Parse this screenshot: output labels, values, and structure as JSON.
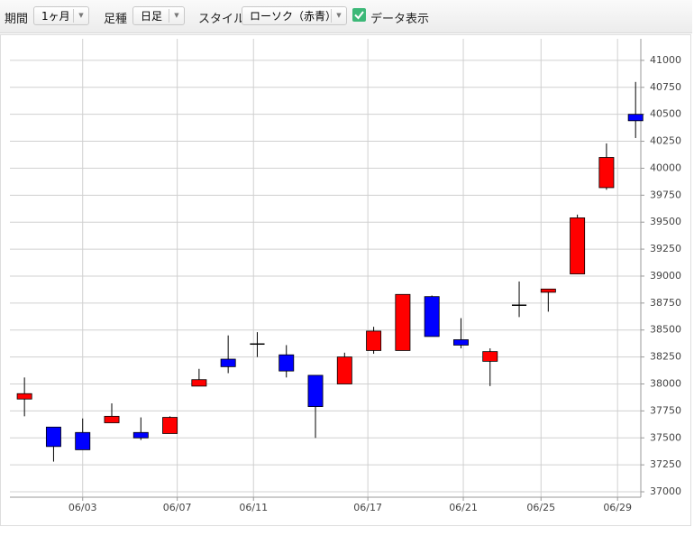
{
  "controls": {
    "period_label": "期間",
    "period_value": "1ヶ月",
    "bar_label": "足種",
    "bar_value": "日足",
    "style_label": "スタイル",
    "style_value": "ローソク（赤青）",
    "data_toggle": "データ表示"
  },
  "chart_data": {
    "type": "candlestick",
    "x": [
      0,
      1,
      2,
      3,
      4,
      5,
      6,
      7,
      8,
      9,
      10,
      11,
      12,
      13,
      14,
      15,
      16,
      17,
      18,
      19,
      20,
      21
    ],
    "open": [
      37860,
      37600,
      37550,
      37640,
      37550,
      37540,
      37980,
      38230,
      38370,
      38270,
      38080,
      38000,
      38310,
      38310,
      38810,
      38410,
      38210,
      38730,
      38850,
      39020,
      39820,
      40500
    ],
    "high": [
      38060,
      37600,
      37680,
      37820,
      37690,
      37700,
      38140,
      38450,
      38480,
      38360,
      38080,
      38290,
      38530,
      38830,
      38820,
      38610,
      38330,
      38950,
      38880,
      39570,
      40230,
      40800
    ],
    "low": [
      37700,
      37280,
      37390,
      37640,
      37480,
      37540,
      37980,
      38100,
      38250,
      38060,
      37500,
      38000,
      38280,
      38310,
      38440,
      38330,
      37980,
      38620,
      38670,
      39020,
      39800,
      40280
    ],
    "close": [
      37910,
      37420,
      37390,
      37700,
      37500,
      37690,
      38040,
      38160,
      38370,
      38120,
      37790,
      38250,
      38490,
      38830,
      38440,
      38360,
      38300,
      38730,
      38880,
      39540,
      40100,
      40440
    ],
    "up_color": "#ff0000",
    "down_color": "#0000ff",
    "flat_color": "#000000",
    "xlim": [
      -0.5,
      21.18
    ],
    "xticks": [
      {
        "value": 2,
        "label": "06/03"
      },
      {
        "value": 5.25,
        "label": "06/07"
      },
      {
        "value": 7.87,
        "label": "06/11"
      },
      {
        "value": 11.8,
        "label": "06/17"
      },
      {
        "value": 15.08,
        "label": "06/21"
      },
      {
        "value": 17.75,
        "label": "06/25"
      },
      {
        "value": 20.38,
        "label": "06/29"
      }
    ],
    "ylim": [
      36950,
      41200
    ],
    "yticks": [
      37000,
      37250,
      37500,
      37750,
      38000,
      38250,
      38500,
      38750,
      39000,
      39250,
      39500,
      39750,
      40000,
      40250,
      40500,
      40750,
      41000
    ],
    "grid": true
  }
}
